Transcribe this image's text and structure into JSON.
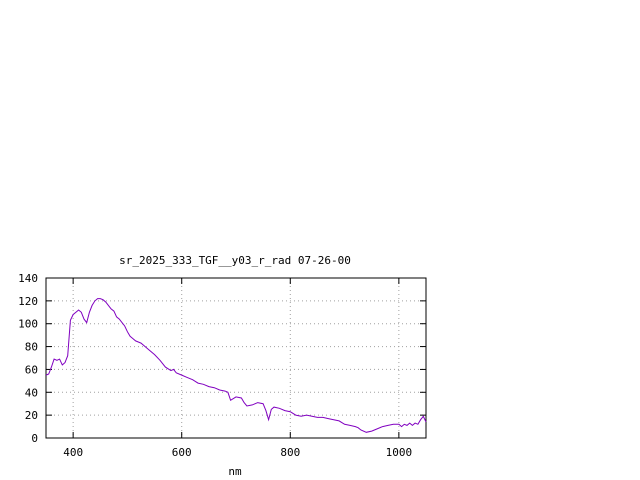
{
  "chart_data": {
    "type": "line",
    "title": "sr_2025_333_TGF__y03_r_rad 07-26-00",
    "xlabel": "nm",
    "ylabel": "",
    "xlim": [
      350,
      1050
    ],
    "ylim": [
      0,
      140
    ],
    "xticks": [
      400,
      600,
      800,
      1000
    ],
    "yticks": [
      0,
      20,
      40,
      60,
      80,
      100,
      120,
      140
    ],
    "grid": true,
    "line_color": "#8000c0",
    "series": [
      {
        "x": [
          350,
          355,
          360,
          365,
          370,
          375,
          380,
          385,
          390,
          395,
          400,
          405,
          410,
          415,
          420,
          425,
          430,
          435,
          440,
          445,
          450,
          455,
          460,
          465,
          470,
          475,
          480,
          485,
          490,
          495,
          500,
          505,
          510,
          515,
          520,
          525,
          530,
          540,
          550,
          560,
          570,
          580,
          585,
          590,
          600,
          610,
          620,
          630,
          640,
          650,
          660,
          670,
          680,
          685,
          690,
          700,
          710,
          715,
          720,
          730,
          740,
          750,
          755,
          760,
          765,
          770,
          780,
          790,
          800,
          810,
          820,
          830,
          840,
          850,
          860,
          870,
          880,
          890,
          900,
          910,
          920,
          925,
          930,
          940,
          950,
          960,
          970,
          980,
          990,
          1000,
          1005,
          1010,
          1015,
          1020,
          1025,
          1030,
          1035,
          1040,
          1045,
          1050
        ],
        "y": [
          55,
          56,
          62,
          69,
          68,
          69,
          64,
          66,
          72,
          103,
          108,
          110,
          112,
          110,
          104,
          101,
          110,
          116,
          120,
          122,
          122,
          121,
          119,
          116,
          113,
          111,
          106,
          104,
          101,
          98,
          93,
          89,
          87,
          85,
          84,
          83,
          81,
          77,
          73,
          68,
          62,
          59,
          60,
          57,
          55,
          53,
          51,
          48,
          47,
          45,
          44,
          42,
          41,
          40,
          33,
          36,
          35,
          31,
          28,
          29,
          31,
          30,
          24,
          16,
          25,
          27,
          26,
          24,
          23,
          20,
          19,
          20,
          19,
          18,
          18,
          17,
          16,
          15,
          12,
          11,
          10,
          9,
          7,
          5,
          6,
          8,
          10,
          11,
          12,
          12,
          10,
          12,
          11,
          13,
          11,
          13,
          12,
          16,
          19,
          14
        ]
      }
    ]
  }
}
